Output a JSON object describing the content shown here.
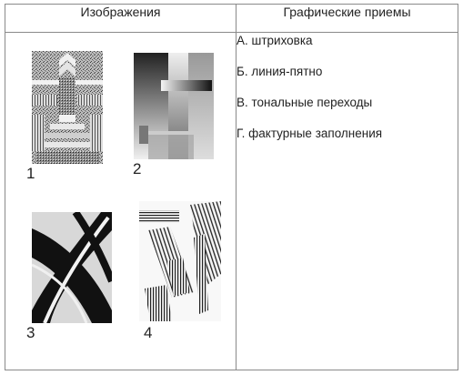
{
  "table": {
    "col_images": "Изображения",
    "col_techniques": "Графические приемы"
  },
  "images": [
    {
      "number": "1"
    },
    {
      "number": "2"
    },
    {
      "number": "3"
    },
    {
      "number": "4"
    }
  ],
  "techniques": [
    "А. штриховка",
    "Б. линия-пятно",
    "В. тональные переходы",
    "Г. фактурные заполнения"
  ]
}
